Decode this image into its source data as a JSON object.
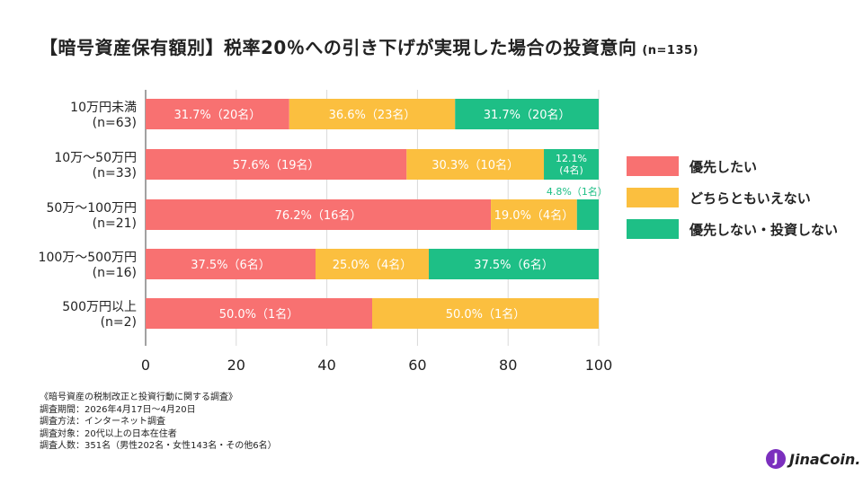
{
  "title": {
    "main": "【暗号資産保有額別】税率20％への引き下げが実現した場合の投資意向",
    "sample": "(n=135)"
  },
  "colors": {
    "prioritize": "#f87171",
    "either": "#fbbf3f",
    "not": "#1ebf86"
  },
  "chart_data": {
    "type": "bar",
    "orientation": "horizontal",
    "stacked": true,
    "categories": [
      {
        "label": "10万円未満",
        "n": "(n=63)"
      },
      {
        "label": "10万～50万円",
        "n": "(n=33)"
      },
      {
        "label": "50万～100万円",
        "n": "(n=21)"
      },
      {
        "label": "100万～500万円",
        "n": "(n=16)"
      },
      {
        "label": "500万円以上",
        "n": "(n=2)"
      }
    ],
    "series": [
      {
        "name": "優先したい",
        "color": "#f87171",
        "values": [
          31.7,
          57.6,
          76.2,
          37.5,
          50.0
        ],
        "labels": [
          "31.7%（20名）",
          "57.6%（19名）",
          "76.2%（16名）",
          "37.5%（6名）",
          "50.0%（1名）"
        ]
      },
      {
        "name": "どちらともいえない",
        "color": "#fbbf3f",
        "values": [
          36.6,
          30.3,
          19.0,
          25.0,
          50.0
        ],
        "labels": [
          "36.6%（23名）",
          "30.3%（10名）",
          "19.0%（4名）",
          "25.0%（4名）",
          "50.0%（1名）"
        ]
      },
      {
        "name": "優先しない・投資しない",
        "color": "#1ebf86",
        "values": [
          31.7,
          12.1,
          4.8,
          37.5,
          0
        ],
        "labels": [
          "31.7%（20名）",
          "12.1%\n(4名)",
          "4.8%（1名）",
          "37.5%（6名）",
          ""
        ]
      }
    ],
    "xlim": [
      0,
      100
    ],
    "xticks": [
      "0",
      "20",
      "40",
      "60",
      "80",
      "100"
    ],
    "grid": true,
    "legend_position": "right"
  },
  "notes": {
    "heading": "《暗号資産の税制改正と投資行動に関する調査》",
    "lines": [
      "調査期間：2026年4月17日～4月20日",
      "調査方法：インターネット調査",
      "調査対象：20代以上の日本在住者",
      "調査人数：351名（男性202名・女性143名・その他6名）"
    ]
  },
  "logo": {
    "text": "JinaCoin."
  }
}
